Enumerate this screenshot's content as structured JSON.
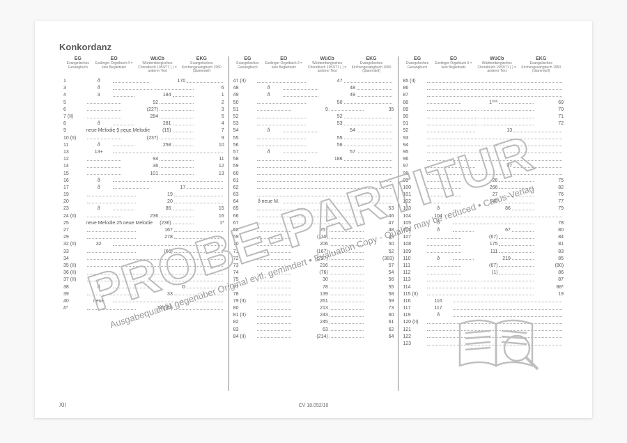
{
  "title": "Konkordanz",
  "footer_left": "XII",
  "footer_center": "CV 18.052/10",
  "watermark_big": "PROBE-PARTITUR",
  "watermark_small": "Ausgabequalität gegenüber Original evtl. gemindert • Evaluation Copy - Quality may be reduced • Carus-Verlag",
  "watermark_logo": "ᐊ",
  "columns": {
    "headers": [
      "EG",
      "EO",
      "WüCb",
      "EKG"
    ],
    "subheaders": [
      "Evangelisches Gesangbuch",
      "Esslinger Orgelbuch\nð = kein Begleitsatz",
      "Württembergisches Choralbuch 1953/71\n( ) = anderer Text",
      "Evangelisches Kirchengesangbuch 1950 (Stammteil)"
    ],
    "col1": [
      {
        "eg": "1",
        "eo": "ð",
        "wucb": "170",
        "ekg": ""
      },
      {
        "eg": "3",
        "eo": "ð",
        "wucb": "",
        "ekg": "6"
      },
      {
        "eg": "4",
        "eo": "3",
        "wucb": "184",
        "ekg": "1"
      },
      {
        "eg": "5",
        "eo": "",
        "wucb": "92",
        "ekg": "2"
      },
      {
        "eg": "6",
        "eo": "",
        "wucb": "(227)",
        "ekg": "3"
      },
      {
        "eg": "7 (II)",
        "eo": "",
        "wucb": "284",
        "ekg": "5"
      },
      {
        "eg": "8",
        "eo": "ð",
        "wucb": "281",
        "ekg": "4"
      },
      {
        "eg": "9",
        "eo": "neue Melodie   9 neue Melodie",
        "wucb": "(15)",
        "ekg": "7"
      },
      {
        "eg": "10 (II)",
        "eo": "",
        "wucb": "(237)",
        "ekg": "9"
      },
      {
        "eg": "11",
        "eo": "ð",
        "wucb": "258",
        "ekg": "10"
      },
      {
        "eg": "13",
        "eo": "13+",
        "wucb": "",
        "ekg": ""
      },
      {
        "eg": "12",
        "eo": "",
        "wucb": "94",
        "ekg": "11"
      },
      {
        "eg": "14",
        "eo": "",
        "wucb": "36",
        "ekg": "12"
      },
      {
        "eg": "15",
        "eo": "",
        "wucb": "101",
        "ekg": "13"
      },
      {
        "eg": "16",
        "eo": "ð",
        "wucb": "",
        "ekg": ""
      },
      {
        "eg": "17",
        "eo": "ð",
        "wucb": "17",
        "ekg": ""
      },
      {
        "eg": "19",
        "eo": "",
        "wucb": "19",
        "ekg": ""
      },
      {
        "eg": "20",
        "eo": "",
        "wucb": "20",
        "ekg": ""
      },
      {
        "eg": "23",
        "eo": "ð",
        "wucb": "85",
        "ekg": "15"
      },
      {
        "eg": "24 (II)",
        "eo": "",
        "wucb": "236",
        "ekg": "16"
      },
      {
        "eg": "25",
        "eo": "neue Melodie   25 neue Melodie",
        "wucb": "(236)",
        "ekg": "1*"
      },
      {
        "eg": "27",
        "eo": "",
        "wucb": "167",
        "ekg": ""
      },
      {
        "eg": "29",
        "eo": "",
        "wucb": "278",
        "ekg": ""
      },
      {
        "eg": "32 (II)",
        "eo": "32",
        "wucb": "",
        "ekg": ""
      },
      {
        "eg": "33",
        "eo": "",
        "wucb": "(66)",
        "ekg": ""
      },
      {
        "eg": "34",
        "eo": "",
        "wucb": "",
        "ekg": ""
      },
      {
        "eg": "35 (II)",
        "eo": "",
        "wucb": "",
        "ekg": ""
      },
      {
        "eg": "36 (II)",
        "eo": "",
        "wucb": "",
        "ekg": ""
      },
      {
        "eg": "37 (II)",
        "eo": "",
        "wucb": "",
        "ekg": ""
      },
      {
        "eg": "38",
        "eo": "ð",
        "wucb": "G",
        "ekg": ""
      },
      {
        "eg": "39",
        "eo": "",
        "wucb": "33",
        "ekg": ""
      },
      {
        "eg": "40",
        "eo": "neue",
        "wucb": "",
        "ekg": ""
      },
      {
        "eg": "#*",
        "eo": "",
        "wucb": "34 (30)",
        "ekg": ""
      }
    ],
    "col2": [
      {
        "eg": "47 (II)",
        "eo": "",
        "wucb": "47",
        "ekg": ""
      },
      {
        "eg": "48",
        "eo": "ð",
        "wucb": "48",
        "ekg": ""
      },
      {
        "eg": "49",
        "eo": "ð",
        "wucb": "49",
        "ekg": ""
      },
      {
        "eg": "50",
        "eo": "",
        "wucb": "50",
        "ekg": ""
      },
      {
        "eg": "51",
        "eo": "",
        "wucb": "9",
        "ekg": "35"
      },
      {
        "eg": "52",
        "eo": "",
        "wucb": "52",
        "ekg": ""
      },
      {
        "eg": "53",
        "eo": "",
        "wucb": "53",
        "ekg": ""
      },
      {
        "eg": "54",
        "eo": "ð",
        "wucb": "54",
        "ekg": ""
      },
      {
        "eg": "55",
        "eo": "",
        "wucb": "55",
        "ekg": ""
      },
      {
        "eg": "56",
        "eo": "",
        "wucb": "56",
        "ekg": ""
      },
      {
        "eg": "57",
        "eo": "ð",
        "wucb": "57",
        "ekg": ""
      },
      {
        "eg": "58",
        "eo": "",
        "wucb": "186",
        "ekg": ""
      },
      {
        "eg": "59",
        "eo": "",
        "wucb": "",
        "ekg": ""
      },
      {
        "eg": "60",
        "eo": "",
        "wucb": "",
        "ekg": ""
      },
      {
        "eg": "61",
        "eo": "",
        "wucb": "",
        "ekg": ""
      },
      {
        "eg": "62",
        "eo": "",
        "wucb": "",
        "ekg": ""
      },
      {
        "eg": "63",
        "eo": "",
        "wucb": "",
        "ekg": ""
      },
      {
        "eg": "64",
        "eo": "ð neue M.",
        "wucb": "",
        "ekg": ""
      },
      {
        "eg": "65",
        "eo": "",
        "wucb": "",
        "ekg": "53"
      },
      {
        "eg": "66",
        "eo": "",
        "wucb": "",
        "ekg": "46"
      },
      {
        "eg": "67",
        "eo": "",
        "wucb": "",
        "ekg": "47"
      },
      {
        "eg": "68",
        "eo": "",
        "wucb": "257",
        "ekg": "48"
      },
      {
        "eg": "69",
        "eo": "",
        "wucb": "(118)",
        "ekg": "49"
      },
      {
        "eg": "70",
        "eo": "",
        "wucb": "206",
        "ekg": "50"
      },
      {
        "eg": "71",
        "eo": "",
        "wucb": "(167)",
        "ekg": "52"
      },
      {
        "eg": "72",
        "eo": "",
        "wucb": "(227)",
        "ekg": "(383)"
      },
      {
        "eg": "73",
        "eo": "",
        "wucb": "216",
        "ekg": "57"
      },
      {
        "eg": "74",
        "eo": "",
        "wucb": "(76)",
        "ekg": "54"
      },
      {
        "eg": "75",
        "eo": "",
        "wucb": "30",
        "ekg": "56"
      },
      {
        "eg": "77",
        "eo": "",
        "wucb": "78",
        "ekg": "55"
      },
      {
        "eg": "78",
        "eo": "",
        "wucb": "139",
        "ekg": "58"
      },
      {
        "eg": "79 (II)",
        "eo": "",
        "wucb": "261",
        "ekg": "59"
      },
      {
        "eg": "80",
        "eo": "",
        "wucb": "213",
        "ekg": "73"
      },
      {
        "eg": "81 (II)",
        "eo": "",
        "wucb": "243",
        "ekg": "60"
      },
      {
        "eg": "82",
        "eo": "",
        "wucb": "245",
        "ekg": "61"
      },
      {
        "eg": "83",
        "eo": "",
        "wucb": "63",
        "ekg": "62"
      },
      {
        "eg": "84 (II)",
        "eo": "",
        "wucb": "(214)",
        "ekg": "64"
      }
    ],
    "col3": [
      {
        "eg": "85 (II)",
        "eo": "",
        "wucb": "",
        "ekg": ""
      },
      {
        "eg": "86",
        "eo": "",
        "wucb": "",
        "ekg": ""
      },
      {
        "eg": "87",
        "eo": "",
        "wucb": "",
        "ekg": ""
      },
      {
        "eg": "88",
        "eo": "",
        "wucb": "1⁰⁰⁰",
        "ekg": "69"
      },
      {
        "eg": "89",
        "eo": "",
        "wucb": "",
        "ekg": "70"
      },
      {
        "eg": "90",
        "eo": "",
        "wucb": "",
        "ekg": "71"
      },
      {
        "eg": "91",
        "eo": "",
        "wucb": "",
        "ekg": "72"
      },
      {
        "eg": "92",
        "eo": "",
        "wucb": "13",
        "ekg": ""
      },
      {
        "eg": "93",
        "eo": "",
        "wucb": "",
        "ekg": ""
      },
      {
        "eg": "94",
        "eo": "",
        "wucb": "",
        "ekg": ""
      },
      {
        "eg": "95",
        "eo": "",
        "wucb": "",
        "ekg": ""
      },
      {
        "eg": "96",
        "eo": "",
        "wucb": "",
        "ekg": ""
      },
      {
        "eg": "97",
        "eo": "",
        "wucb": "97",
        "ekg": ""
      },
      {
        "eg": "98",
        "eo": "",
        "wucb": "",
        "ekg": ""
      },
      {
        "eg": "99",
        "eo": "",
        "wucb": "26",
        "ekg": "75"
      },
      {
        "eg": "100",
        "eo": "",
        "wucb": "266",
        "ekg": "82"
      },
      {
        "eg": "101",
        "eo": "",
        "wucb": "27",
        "ekg": "76"
      },
      {
        "eg": "102",
        "eo": "",
        "wucb": "143",
        "ekg": "77"
      },
      {
        "eg": "103",
        "eo": "ð",
        "wucb": "86",
        "ekg": "79"
      },
      {
        "eg": "104",
        "eo": "104",
        "wucb": "",
        "ekg": ""
      },
      {
        "eg": "105",
        "eo": "ð",
        "wucb": "",
        "ekg": "78"
      },
      {
        "eg": "106",
        "eo": "ð",
        "wucb": "67",
        "ekg": "80"
      },
      {
        "eg": "107",
        "eo": "",
        "wucb": "(67)",
        "ekg": "84"
      },
      {
        "eg": "108",
        "eo": "",
        "wucb": "175",
        "ekg": "81"
      },
      {
        "eg": "109",
        "eo": "",
        "wucb": "111",
        "ekg": "83"
      },
      {
        "eg": "110",
        "eo": "ð",
        "wucb": "219",
        "ekg": "85"
      },
      {
        "eg": "111",
        "eo": "",
        "wucb": "(67)",
        "ekg": "(80)"
      },
      {
        "eg": "112",
        "eo": "",
        "wucb": "(1)",
        "ekg": "86"
      },
      {
        "eg": "113",
        "eo": "",
        "wucb": "",
        "ekg": "87"
      },
      {
        "eg": "114",
        "eo": "",
        "wucb": "",
        "ekg": "88*"
      },
      {
        "eg": "115 (II)",
        "eo": "",
        "wucb": "",
        "ekg": "19"
      },
      {
        "eg": "116",
        "eo": "116",
        "wucb": "",
        "ekg": ""
      },
      {
        "eg": "117",
        "eo": "117",
        "wucb": "",
        "ekg": ""
      },
      {
        "eg": "119",
        "eo": "ð",
        "wucb": "",
        "ekg": ""
      },
      {
        "eg": "120 (II)",
        "eo": "",
        "wucb": "",
        "ekg": ""
      },
      {
        "eg": "121",
        "eo": "",
        "wucb": "",
        "ekg": ""
      },
      {
        "eg": "122",
        "eo": "",
        "wucb": "",
        "ekg": ""
      },
      {
        "eg": "123",
        "eo": "",
        "wucb": "",
        "ekg": ""
      }
    ]
  },
  "style": {
    "page_bg": "#ffffff",
    "body_bg": "#f8f8f8",
    "text_color": "#5a5a5a",
    "dot_color": "#aaaaaa",
    "divider_color": "#888888",
    "watermark_stroke": "#bbbbbb",
    "watermark_text": "#999999",
    "book_icon_stroke": "#bfbfbf"
  }
}
